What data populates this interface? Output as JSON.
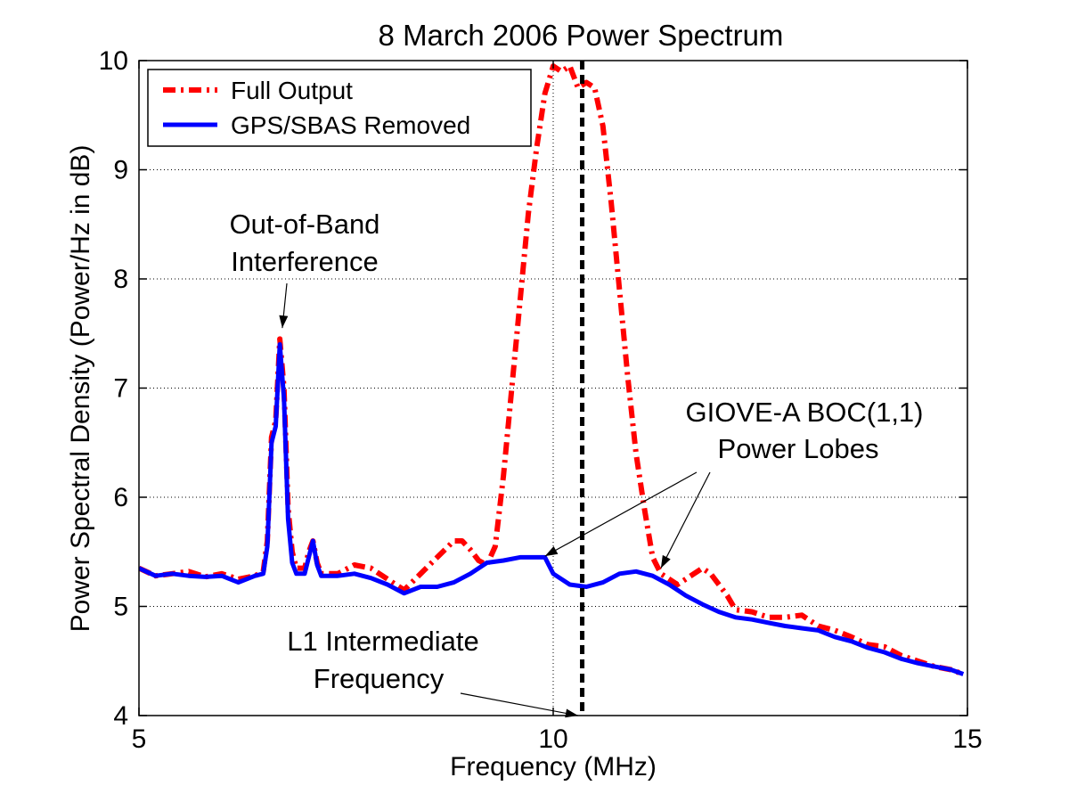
{
  "chart_data": {
    "type": "line",
    "title": "8 March 2006 Power Spectrum",
    "xlabel": "Frequency (MHz)",
    "ylabel": "Power Spectral Density (Power/Hz in dB)",
    "xlim": [
      5,
      15
    ],
    "ylim": [
      4,
      10
    ],
    "xticks": [
      5,
      10,
      15
    ],
    "yticks": [
      4,
      5,
      6,
      7,
      8,
      9,
      10
    ],
    "grid": true,
    "legend_position": "top-left",
    "series": [
      {
        "name": "Full Output",
        "color": "#ff0000",
        "style": "dash-dot",
        "x": [
          5.0,
          5.2,
          5.4,
          5.6,
          5.8,
          6.0,
          6.2,
          6.4,
          6.5,
          6.55,
          6.6,
          6.65,
          6.7,
          6.75,
          6.8,
          6.85,
          6.9,
          7.0,
          7.05,
          7.1,
          7.15,
          7.2,
          7.4,
          7.6,
          7.8,
          8.0,
          8.2,
          8.4,
          8.6,
          8.8,
          8.9,
          9.0,
          9.1,
          9.2,
          9.3,
          9.4,
          9.5,
          9.6,
          9.7,
          9.8,
          9.9,
          10.0,
          10.1,
          10.2,
          10.3,
          10.4,
          10.5,
          10.6,
          10.7,
          10.8,
          10.9,
          11.0,
          11.1,
          11.2,
          11.3,
          11.4,
          11.5,
          11.6,
          11.7,
          11.8,
          11.9,
          12.0,
          12.1,
          12.2,
          12.4,
          12.6,
          12.8,
          13.0,
          13.2,
          13.4,
          13.6,
          13.8,
          14.0,
          14.2,
          14.4,
          14.6,
          14.8,
          14.95
        ],
        "values": [
          5.35,
          5.28,
          5.3,
          5.32,
          5.27,
          5.3,
          5.25,
          5.28,
          5.32,
          5.6,
          6.55,
          6.7,
          7.45,
          7.0,
          5.9,
          5.5,
          5.35,
          5.35,
          5.5,
          5.6,
          5.4,
          5.3,
          5.3,
          5.38,
          5.35,
          5.25,
          5.15,
          5.3,
          5.45,
          5.6,
          5.6,
          5.52,
          5.42,
          5.38,
          5.55,
          6.2,
          7.0,
          7.8,
          8.6,
          9.2,
          9.7,
          9.95,
          9.9,
          9.95,
          9.75,
          9.8,
          9.75,
          9.4,
          8.7,
          7.9,
          7.1,
          6.4,
          5.9,
          5.45,
          5.3,
          5.25,
          5.2,
          5.25,
          5.3,
          5.35,
          5.3,
          5.2,
          5.1,
          4.97,
          4.95,
          4.9,
          4.9,
          4.92,
          4.82,
          4.78,
          4.72,
          4.65,
          4.63,
          4.55,
          4.5,
          4.45,
          4.42,
          4.38
        ]
      },
      {
        "name": "GPS/SBAS Removed",
        "color": "#0000ff",
        "style": "solid",
        "x": [
          5.0,
          5.2,
          5.4,
          5.6,
          5.8,
          6.0,
          6.2,
          6.4,
          6.5,
          6.55,
          6.6,
          6.65,
          6.7,
          6.75,
          6.8,
          6.85,
          6.9,
          7.0,
          7.05,
          7.1,
          7.15,
          7.2,
          7.4,
          7.6,
          7.8,
          8.0,
          8.2,
          8.4,
          8.6,
          8.8,
          9.0,
          9.2,
          9.4,
          9.6,
          9.8,
          9.9,
          10.0,
          10.2,
          10.4,
          10.6,
          10.8,
          11.0,
          11.2,
          11.4,
          11.6,
          11.8,
          12.0,
          12.2,
          12.4,
          12.6,
          12.8,
          13.0,
          13.2,
          13.4,
          13.6,
          13.8,
          14.0,
          14.2,
          14.4,
          14.6,
          14.8,
          14.95
        ],
        "values": [
          5.35,
          5.28,
          5.3,
          5.28,
          5.27,
          5.28,
          5.22,
          5.28,
          5.3,
          5.55,
          6.5,
          6.65,
          7.4,
          6.9,
          5.8,
          5.4,
          5.3,
          5.3,
          5.45,
          5.6,
          5.38,
          5.28,
          5.28,
          5.3,
          5.26,
          5.2,
          5.12,
          5.18,
          5.18,
          5.22,
          5.3,
          5.4,
          5.42,
          5.45,
          5.45,
          5.45,
          5.3,
          5.2,
          5.18,
          5.22,
          5.3,
          5.32,
          5.28,
          5.2,
          5.1,
          5.02,
          4.95,
          4.9,
          4.88,
          4.85,
          4.82,
          4.8,
          4.78,
          4.72,
          4.68,
          4.62,
          4.58,
          4.52,
          4.48,
          4.45,
          4.42,
          4.38
        ]
      }
    ],
    "vertical_marker": {
      "x": 10.35,
      "color": "#000000",
      "style": "dashed"
    },
    "annotations": [
      {
        "lines": [
          "Out-of-Band",
          "Interference"
        ],
        "arrows_to": [
          {
            "x": 6.73,
            "y": 7.55
          }
        ]
      },
      {
        "lines": [
          "GIOVE-A BOC(1,1)",
          "Power Lobes"
        ],
        "arrows_to": [
          {
            "x": 9.9,
            "y": 5.46
          },
          {
            "x": 11.3,
            "y": 5.35
          }
        ]
      },
      {
        "lines": [
          "L1 Intermediate",
          "Frequency"
        ],
        "arrows_to": [
          {
            "x": 10.3,
            "y": 4.0
          }
        ]
      }
    ]
  }
}
